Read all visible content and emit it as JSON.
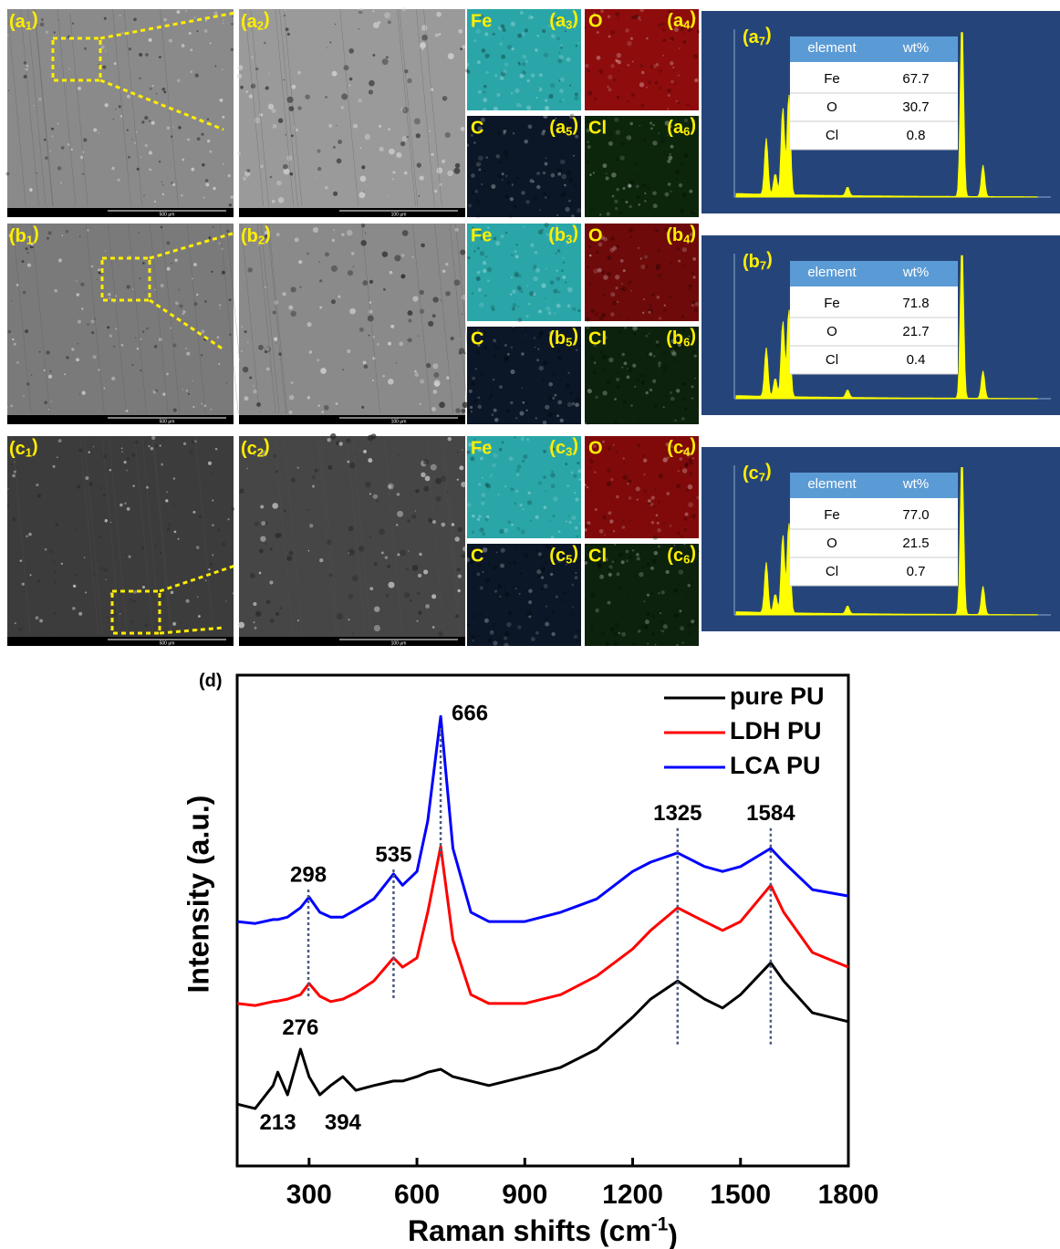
{
  "figure": {
    "rows": [
      {
        "sem": [
          {
            "label": [
              "(a",
              "1",
              ")"
            ],
            "scale": "500 μm",
            "tone": "#8a8a8a"
          },
          {
            "label": [
              "(a",
              "2",
              ")"
            ],
            "scale": "100 μm",
            "tone": "#9a9a9a"
          }
        ],
        "maps": [
          {
            "element": "Fe",
            "label": [
              "(a",
              "3",
              ")"
            ],
            "color": "#2aa6a8"
          },
          {
            "element": "O",
            "label": [
              "(a",
              "4",
              ")"
            ],
            "color": "#8e0c0c"
          },
          {
            "element": "C",
            "label": [
              "(a",
              "5",
              ")"
            ],
            "color": "#0b1626"
          },
          {
            "element": "Cl",
            "label": [
              "(a",
              "6",
              ")"
            ],
            "color": "#0c260c"
          }
        ],
        "eds": {
          "label": [
            "(a",
            "7",
            ")"
          ],
          "table": {
            "header": [
              "element",
              "wt%"
            ],
            "rows": [
              [
                "Fe",
                "67.7"
              ],
              [
                "O",
                "30.7"
              ],
              [
                "Cl",
                "0.8"
              ]
            ]
          }
        }
      },
      {
        "sem": [
          {
            "label": [
              "(b",
              "1",
              ")"
            ],
            "scale": "500 μm",
            "tone": "#7a7a7a"
          },
          {
            "label": [
              "(b",
              "2",
              ")"
            ],
            "scale": "100 μm",
            "tone": "#8a8a8a"
          }
        ],
        "maps": [
          {
            "element": "Fe",
            "label": [
              "(b",
              "3",
              ")"
            ],
            "color": "#2aa6a8"
          },
          {
            "element": "O",
            "label": [
              "(b",
              "4",
              ")"
            ],
            "color": "#6e0a0a"
          },
          {
            "element": "C",
            "label": [
              "(b",
              "5",
              ")"
            ],
            "color": "#0b1626"
          },
          {
            "element": "Cl",
            "label": [
              "(b",
              "6",
              ")"
            ],
            "color": "#0c220c"
          }
        ],
        "eds": {
          "label": [
            "(b",
            "7",
            ")"
          ],
          "table": {
            "header": [
              "element",
              "wt%"
            ],
            "rows": [
              [
                "Fe",
                "71.8"
              ],
              [
                "O",
                "21.7"
              ],
              [
                "Cl",
                "0.4"
              ]
            ]
          }
        }
      },
      {
        "sem": [
          {
            "label": [
              "(c",
              "1",
              ")"
            ],
            "scale": "500 μm",
            "tone": "#3c3c3c"
          },
          {
            "label": [
              "(c",
              "2",
              ")"
            ],
            "scale": "100 μm",
            "tone": "#464646"
          }
        ],
        "maps": [
          {
            "element": "Fe",
            "label": [
              "(c",
              "3",
              ")"
            ],
            "color": "#2aa6a8"
          },
          {
            "element": "O",
            "label": [
              "(c",
              "4",
              ")"
            ],
            "color": "#800a0a"
          },
          {
            "element": "C",
            "label": [
              "(c",
              "5",
              ")"
            ],
            "color": "#0b1626"
          },
          {
            "element": "Cl",
            "label": [
              "(c",
              "6",
              ")"
            ],
            "color": "#0c220c"
          }
        ],
        "eds": {
          "label": [
            "(c",
            "7",
            ")"
          ],
          "table": {
            "header": [
              "element",
              "wt%"
            ],
            "rows": [
              [
                "Fe",
                "77.0"
              ],
              [
                "O",
                "21.5"
              ],
              [
                "Cl",
                "0.7"
              ]
            ]
          }
        }
      }
    ]
  },
  "chart_data": {
    "type": "line",
    "panel_label": "(d)",
    "xlabel": [
      "Raman shifts (cm",
      "-1",
      ")"
    ],
    "ylabel": "Intensity (a.u.)",
    "x": [
      100,
      150,
      200,
      213,
      240,
      276,
      300,
      330,
      360,
      394,
      430,
      480,
      535,
      560,
      600,
      630,
      666,
      700,
      750,
      800,
      900,
      1000,
      1100,
      1200,
      1250,
      1325,
      1400,
      1450,
      1500,
      1584,
      1620,
      1700,
      1800
    ],
    "series": [
      {
        "name": "pure PU",
        "color": "#000000",
        "values": [
          12.6,
          11.7,
          16.4,
          19.1,
          14.5,
          23.8,
          18.2,
          14.5,
          16.4,
          18.2,
          15.4,
          16.4,
          17.3,
          17.3,
          18.2,
          19.1,
          19.7,
          18.2,
          17.3,
          16.4,
          18.2,
          20.1,
          23.8,
          30.3,
          34.0,
          37.7,
          34.0,
          32.2,
          34.9,
          41.4,
          37.7,
          31.2,
          29.4
        ]
      },
      {
        "name": "LDH PU",
        "color": "#ff0000",
        "values": [
          33.1,
          32.7,
          33.5,
          33.6,
          34.0,
          34.9,
          37.2,
          34.6,
          33.5,
          34.0,
          35.3,
          37.7,
          42.4,
          40.5,
          42.4,
          51.7,
          65.1,
          46.1,
          34.9,
          33.1,
          33.1,
          34.9,
          38.7,
          44.2,
          48.0,
          52.6,
          49.8,
          48.0,
          49.8,
          57.2,
          51.7,
          43.5,
          40.5
        ]
      },
      {
        "name": "LCA PU",
        "color": "#0000ff",
        "values": [
          49.8,
          49.4,
          50.2,
          50.2,
          50.7,
          52.6,
          54.8,
          51.7,
          50.7,
          50.7,
          52.2,
          54.4,
          59.5,
          57.2,
          60.0,
          70.3,
          91.6,
          64.7,
          51.7,
          49.8,
          49.8,
          51.7,
          54.4,
          60.0,
          61.9,
          63.8,
          61.0,
          60.0,
          61.0,
          64.7,
          61.9,
          56.3,
          55.0
        ]
      }
    ],
    "annotations": [
      {
        "x": 298,
        "y": 59.1,
        "dashed_to": 34.0
      },
      {
        "x": 535,
        "y": 63.2,
        "dashed_to": 34.0
      },
      {
        "x": 666,
        "y": 92.0,
        "dashed_to": 62.8
      },
      {
        "x": 1325,
        "y": 71.6,
        "dashed_to": 24.7
      },
      {
        "x": 1584,
        "y": 71.6,
        "dashed_to": 24.7
      },
      {
        "x": 276,
        "y": 27.9
      },
      {
        "x": 213,
        "y": 8.6
      },
      {
        "x": 394,
        "y": 8.6
      }
    ],
    "xlim": [
      100,
      1800
    ],
    "ylim": [
      0,
      100
    ],
    "xticks": [
      300,
      600,
      900,
      1200,
      1500,
      1800
    ],
    "legend": "upper right"
  }
}
